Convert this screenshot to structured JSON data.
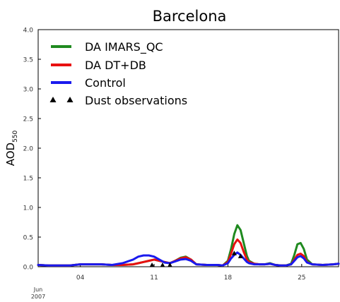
{
  "chart_data": {
    "type": "line",
    "title": "Barcelona",
    "ylabel": "AOD",
    "ylabel_sub": "550",
    "ylim": [
      0.0,
      4.0
    ],
    "xlim": [
      0,
      28.5
    ],
    "y_ticks": [
      "0.0",
      "0.5",
      "1.0",
      "1.5",
      "2.0",
      "2.5",
      "3.0",
      "3.5",
      "4.0"
    ],
    "x_ticks": [
      {
        "day": 4,
        "label": "04"
      },
      {
        "day": 11,
        "label": "11"
      },
      {
        "day": 18,
        "label": "18"
      },
      {
        "day": 25,
        "label": "25"
      }
    ],
    "x_start_label": [
      "Jun",
      "2007"
    ],
    "legend_position": "upper-left",
    "series": [
      {
        "name": "DA IMARS_QC",
        "color": "#1f8a1f",
        "x": [
          0,
          1,
          2,
          3,
          4,
          5,
          6,
          7,
          8,
          9,
          9.5,
          10,
          10.5,
          11,
          11.5,
          12,
          12.5,
          13,
          13.5,
          14,
          14.5,
          15,
          16,
          17,
          17.5,
          18,
          18.3,
          18.6,
          18.9,
          19.2,
          19.5,
          19.8,
          20,
          20.5,
          21,
          21.5,
          22,
          22.5,
          23,
          23.5,
          24,
          24.3,
          24.6,
          24.9,
          25.2,
          25.5,
          26,
          27,
          28,
          28.5
        ],
        "y": [
          0.03,
          0.02,
          0.02,
          0.02,
          0.04,
          0.04,
          0.04,
          0.03,
          0.03,
          0.04,
          0.06,
          0.08,
          0.1,
          0.12,
          0.1,
          0.08,
          0.06,
          0.1,
          0.15,
          0.17,
          0.12,
          0.04,
          0.03,
          0.03,
          0.02,
          0.1,
          0.3,
          0.55,
          0.7,
          0.62,
          0.4,
          0.18,
          0.1,
          0.05,
          0.04,
          0.04,
          0.06,
          0.03,
          0.02,
          0.02,
          0.05,
          0.2,
          0.38,
          0.4,
          0.3,
          0.12,
          0.04,
          0.03,
          0.04,
          0.05
        ]
      },
      {
        "name": "DA DT+DB",
        "color": "#e81010",
        "x": [
          0,
          1,
          2,
          3,
          4,
          5,
          6,
          7,
          8,
          9,
          9.5,
          10,
          10.5,
          11,
          11.5,
          12,
          12.5,
          13,
          13.5,
          14,
          14.5,
          15,
          16,
          17,
          17.5,
          18,
          18.3,
          18.6,
          18.9,
          19.2,
          19.5,
          19.8,
          20,
          20.5,
          21,
          21.5,
          22,
          22.5,
          23,
          23.5,
          24,
          24.3,
          24.6,
          24.9,
          25.2,
          25.5,
          26,
          27,
          28,
          28.5
        ],
        "y": [
          0.03,
          0.02,
          0.02,
          0.02,
          0.04,
          0.04,
          0.04,
          0.03,
          0.03,
          0.04,
          0.06,
          0.08,
          0.1,
          0.12,
          0.1,
          0.08,
          0.06,
          0.1,
          0.14,
          0.16,
          0.12,
          0.04,
          0.03,
          0.03,
          0.02,
          0.08,
          0.22,
          0.38,
          0.46,
          0.4,
          0.25,
          0.12,
          0.08,
          0.05,
          0.04,
          0.04,
          0.05,
          0.03,
          0.02,
          0.02,
          0.04,
          0.12,
          0.2,
          0.22,
          0.18,
          0.08,
          0.04,
          0.03,
          0.04,
          0.05
        ]
      },
      {
        "name": "Control",
        "color": "#1a1aee",
        "x": [
          0,
          1,
          2,
          3,
          4,
          5,
          6,
          7,
          8,
          9,
          9.5,
          10,
          10.5,
          11,
          11.5,
          12,
          12.5,
          13,
          13.5,
          14,
          14.5,
          15,
          16,
          17,
          17.5,
          18,
          18.3,
          18.6,
          18.9,
          19.2,
          19.5,
          19.8,
          20,
          20.5,
          21,
          21.5,
          22,
          22.5,
          23,
          23.5,
          24,
          24.3,
          24.6,
          24.9,
          25.2,
          25.5,
          26,
          27,
          28,
          28.5
        ],
        "y": [
          0.03,
          0.02,
          0.02,
          0.02,
          0.04,
          0.04,
          0.04,
          0.03,
          0.06,
          0.12,
          0.17,
          0.19,
          0.19,
          0.17,
          0.12,
          0.07,
          0.06,
          0.09,
          0.12,
          0.13,
          0.1,
          0.04,
          0.03,
          0.03,
          0.02,
          0.06,
          0.14,
          0.2,
          0.24,
          0.2,
          0.14,
          0.08,
          0.06,
          0.04,
          0.04,
          0.04,
          0.05,
          0.03,
          0.02,
          0.02,
          0.04,
          0.1,
          0.16,
          0.18,
          0.14,
          0.07,
          0.04,
          0.03,
          0.04,
          0.05
        ]
      }
    ],
    "dust_observations": {
      "name": "Dust observations",
      "x": [
        10.8,
        11.8,
        12.5,
        18.6,
        19.2
      ],
      "y": [
        0.0,
        0.0,
        0.0,
        0.2,
        0.15
      ]
    }
  }
}
